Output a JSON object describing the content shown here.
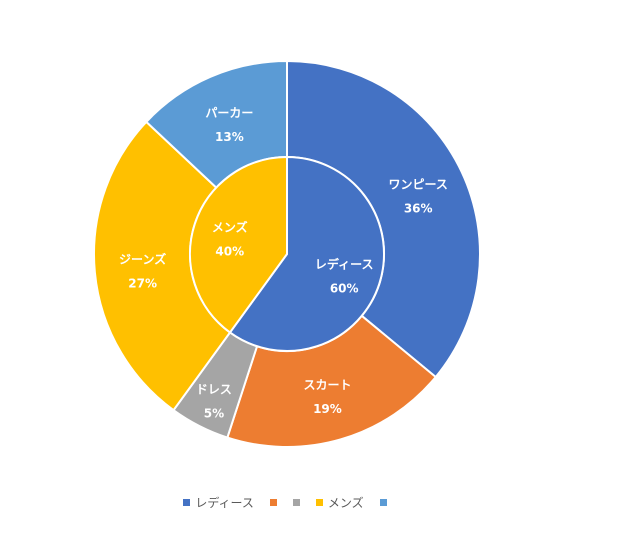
{
  "chart_data": {
    "type": "pie",
    "variant": "sunburst",
    "inner_ring": {
      "categories": [
        "レディース",
        "メンズ"
      ],
      "values": [
        60,
        40
      ],
      "value_labels": [
        "60%",
        "40%"
      ],
      "colors": [
        "#4472C4",
        "#FFC000"
      ]
    },
    "outer_ring": {
      "categories": [
        "ワンピース",
        "スカート",
        "ドレス",
        "ジーンズ",
        "パーカー"
      ],
      "values": [
        36,
        19,
        5,
        27,
        13
      ],
      "value_labels": [
        "36%",
        "19%",
        "5%",
        "27%",
        "13%"
      ],
      "colors": [
        "#4472C4",
        "#ED7D31",
        "#A5A5A5",
        "#FFC000",
        "#5B9BD5"
      ]
    },
    "legend": {
      "position": "bottom",
      "entries": [
        {
          "label": "レディース",
          "color": "#4472C4"
        },
        {
          "label": "",
          "color": "#ED7D31"
        },
        {
          "label": "",
          "color": "#A5A5A5"
        },
        {
          "label": "メンズ",
          "color": "#FFC000"
        },
        {
          "label": "",
          "color": "#5B9BD5"
        }
      ]
    }
  }
}
